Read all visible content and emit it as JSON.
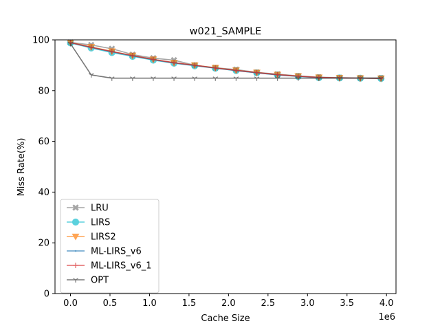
{
  "chart_data": {
    "type": "line",
    "title": "w021_SAMPLE",
    "xlabel": "Cache Size",
    "ylabel": "Miss Rate(%)",
    "x_offset_label": "1e6",
    "xlim": [
      -0.196,
      4.12
    ],
    "ylim": [
      0,
      100
    ],
    "xticks": [
      0.0,
      0.5,
      1.0,
      1.5,
      2.0,
      2.5,
      3.0,
      3.5,
      4.0
    ],
    "xtick_labels": [
      "0.0",
      "0.5",
      "1.0",
      "1.5",
      "2.0",
      "2.5",
      "3.0",
      "3.5",
      "4.0"
    ],
    "yticks": [
      0,
      20,
      40,
      60,
      80,
      100
    ],
    "ytick_labels": [
      "0",
      "20",
      "40",
      "60",
      "80",
      "100"
    ],
    "grid": false,
    "legend_position": "lower-left",
    "x": [
      0.0,
      0.262,
      0.524,
      0.786,
      1.048,
      1.31,
      1.572,
      1.834,
      2.096,
      2.358,
      2.62,
      2.882,
      3.144,
      3.406,
      3.668,
      3.93
    ],
    "series": [
      {
        "name": "LRU",
        "color": "#7f7f7f",
        "marker": "x-filled",
        "values": [
          99.0,
          98.0,
          96.5,
          94.2,
          92.8,
          92.0,
          90.0,
          89.0,
          88.3,
          87.2,
          86.5,
          85.8,
          85.3,
          85.1,
          85.0,
          85.0
        ]
      },
      {
        "name": "LIRS",
        "color": "#17becf",
        "marker": "circle",
        "values": [
          98.8,
          96.8,
          95.0,
          93.5,
          92.0,
          90.8,
          89.8,
          88.8,
          87.9,
          87.0,
          86.2,
          85.6,
          85.1,
          85.0,
          84.9,
          84.8
        ]
      },
      {
        "name": "LIRS2",
        "color": "#ff7f0e",
        "marker": "triangle-down",
        "values": [
          99.0,
          97.2,
          95.5,
          93.8,
          92.3,
          91.0,
          90.0,
          89.0,
          88.0,
          87.1,
          86.3,
          85.7,
          85.2,
          85.0,
          84.9,
          84.8
        ]
      },
      {
        "name": "ML-LIRS_v6",
        "color": "#1f77b4",
        "marker": "dot",
        "values": [
          98.9,
          97.0,
          95.3,
          93.7,
          92.2,
          90.9,
          89.9,
          88.9,
          87.9,
          87.0,
          86.2,
          85.6,
          85.1,
          85.0,
          84.9,
          84.8
        ]
      },
      {
        "name": "ML-LIRS_v6_1",
        "color": "#d62728",
        "marker": "plus",
        "values": [
          98.9,
          97.1,
          95.4,
          93.8,
          92.3,
          91.0,
          90.0,
          88.9,
          88.0,
          87.1,
          86.3,
          85.7,
          85.2,
          85.0,
          84.9,
          84.8
        ]
      },
      {
        "name": "OPT",
        "color": "#404040",
        "marker": "tri-down",
        "values": [
          98.5,
          86.2,
          84.9,
          84.9,
          84.9,
          84.9,
          84.9,
          84.9,
          84.9,
          84.9,
          84.9,
          84.9,
          84.9,
          84.9,
          84.9,
          84.9
        ]
      }
    ]
  }
}
